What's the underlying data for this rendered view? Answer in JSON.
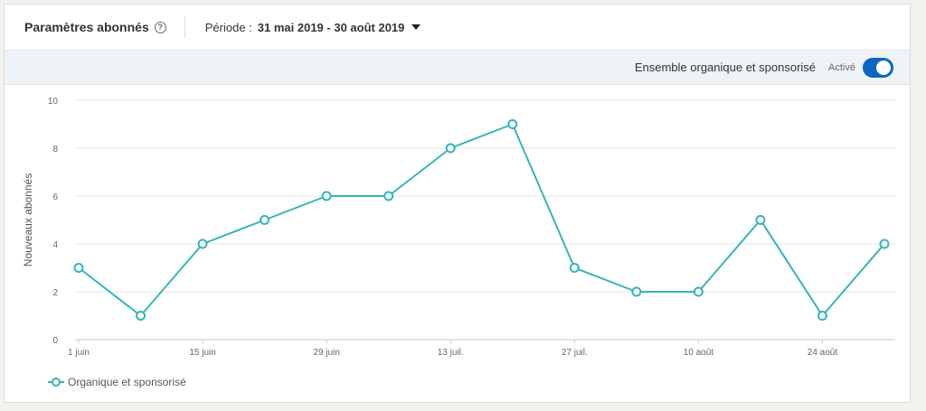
{
  "header": {
    "title": "Paramètres abonnés",
    "help_icon": "?",
    "period_label": "Période :",
    "period_value": "31 mai 2019 - 30 août 2019"
  },
  "subbar": {
    "metric_label": "Ensemble organique et sponsorisé",
    "toggle_label": "Activé",
    "toggle_on": true
  },
  "colors": {
    "series": "#35b5b5",
    "accent": "#0a66c2"
  },
  "chart_data": {
    "type": "line",
    "ylabel": "Nouveaux abonnés",
    "xlabel": "",
    "ylim": [
      0,
      10
    ],
    "y_ticks": [
      0,
      2,
      4,
      6,
      8,
      10
    ],
    "x_tick_labels": [
      "1 juin",
      "15 juin",
      "29 juin",
      "13 juil.",
      "27 juil.",
      "10 août",
      "24 août"
    ],
    "x": [
      "1 juin",
      "8 juin",
      "15 juin",
      "22 juin",
      "29 juin",
      "6 juil.",
      "13 juil.",
      "20 juil.",
      "27 juil.",
      "3 août",
      "10 août",
      "17 août",
      "24 août",
      "31 août"
    ],
    "series": [
      {
        "name": "Organique et sponsorisé",
        "values": [
          3,
          1,
          4,
          5,
          6,
          6,
          8,
          9,
          3,
          2,
          2,
          5,
          1,
          4
        ]
      }
    ],
    "grid": true,
    "legend": "bottom-left"
  }
}
